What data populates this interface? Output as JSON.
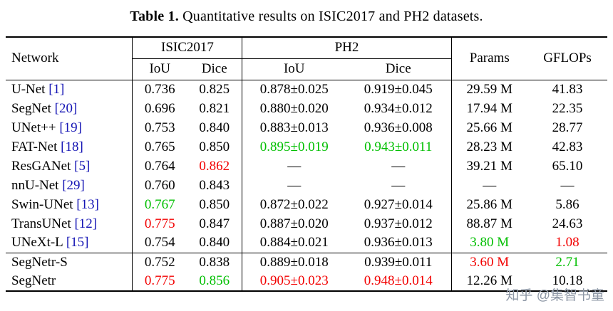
{
  "caption": {
    "label": "Table 1.",
    "text": "Quantitative results on ISIC2017 and PH2 datasets."
  },
  "table": {
    "headers": {
      "network": "Network",
      "isic2017": "ISIC2017",
      "ph2": "PH2",
      "isic_iou": "IoU",
      "isic_dice": "Dice",
      "ph2_iou": "IoU",
      "ph2_dice": "Dice",
      "params": "Params",
      "gflops": "GFLOPs"
    },
    "colors": {
      "best": "#f20000",
      "second_best": "#00bf00",
      "citation": "#1414b4"
    },
    "rows": [
      {
        "network": "U-Net",
        "cite": "[1]",
        "cells": [
          {
            "t": "0.736"
          },
          {
            "t": "0.825"
          },
          {
            "t": "0.878±0.025"
          },
          {
            "t": "0.919±0.045"
          },
          {
            "t": "29.59 M"
          },
          {
            "t": "41.83"
          }
        ]
      },
      {
        "network": "SegNet",
        "cite": "[20]",
        "cells": [
          {
            "t": "0.696"
          },
          {
            "t": "0.821"
          },
          {
            "t": "0.880±0.020"
          },
          {
            "t": "0.934±0.012"
          },
          {
            "t": "17.94 M"
          },
          {
            "t": "22.35"
          }
        ]
      },
      {
        "network": "UNet++",
        "cite": "[19]",
        "cells": [
          {
            "t": "0.753"
          },
          {
            "t": "0.840"
          },
          {
            "t": "0.883±0.013"
          },
          {
            "t": "0.936±0.008"
          },
          {
            "t": "25.66 M"
          },
          {
            "t": "28.77"
          }
        ]
      },
      {
        "network": "FAT-Net",
        "cite": "[18]",
        "cells": [
          {
            "t": "0.765"
          },
          {
            "t": "0.850"
          },
          {
            "t": "0.895±0.019",
            "c": "green"
          },
          {
            "t": "0.943±0.011",
            "c": "green"
          },
          {
            "t": "28.23 M"
          },
          {
            "t": "42.83"
          }
        ]
      },
      {
        "network": "ResGANet",
        "cite": "[5]",
        "cells": [
          {
            "t": "0.764"
          },
          {
            "t": "0.862",
            "c": "red"
          },
          {
            "t": "—"
          },
          {
            "t": "—"
          },
          {
            "t": "39.21 M"
          },
          {
            "t": "65.10"
          }
        ]
      },
      {
        "network": "nnU-Net",
        "cite": "[29]",
        "cells": [
          {
            "t": "0.760"
          },
          {
            "t": "0.843"
          },
          {
            "t": "—"
          },
          {
            "t": "—"
          },
          {
            "t": "—"
          },
          {
            "t": "—"
          }
        ]
      },
      {
        "network": "Swin-UNet",
        "cite": "[13]",
        "cells": [
          {
            "t": "0.767",
            "c": "green"
          },
          {
            "t": "0.850"
          },
          {
            "t": "0.872±0.022"
          },
          {
            "t": "0.927±0.014"
          },
          {
            "t": "25.86 M"
          },
          {
            "t": "5.86"
          }
        ]
      },
      {
        "network": "TransUNet",
        "cite": "[12]",
        "cells": [
          {
            "t": "0.775",
            "c": "red"
          },
          {
            "t": "0.847"
          },
          {
            "t": "0.887±0.020"
          },
          {
            "t": "0.937±0.012"
          },
          {
            "t": "88.87 M"
          },
          {
            "t": "24.63"
          }
        ]
      },
      {
        "network": "UNeXt-L",
        "cite": "[15]",
        "cells": [
          {
            "t": "0.754"
          },
          {
            "t": "0.840"
          },
          {
            "t": "0.884±0.021"
          },
          {
            "t": "0.936±0.013"
          },
          {
            "t": "3.80 M",
            "c": "green"
          },
          {
            "t": "1.08",
            "c": "red"
          }
        ]
      },
      {
        "network": "SegNetr-S",
        "separator": true,
        "cells": [
          {
            "t": "0.752"
          },
          {
            "t": "0.838"
          },
          {
            "t": "0.889±0.018"
          },
          {
            "t": "0.939±0.011"
          },
          {
            "t": "3.60 M",
            "c": "red"
          },
          {
            "t": "2.71",
            "c": "green"
          }
        ]
      },
      {
        "network": "SegNetr",
        "cells": [
          {
            "t": "0.775",
            "c": "red"
          },
          {
            "t": "0.856",
            "c": "green"
          },
          {
            "t": "0.905±0.023",
            "c": "red"
          },
          {
            "t": "0.948±0.014",
            "c": "red"
          },
          {
            "t": "12.26 M"
          },
          {
            "t": "10.18"
          }
        ]
      }
    ]
  },
  "watermark": "知乎 @集智书童"
}
